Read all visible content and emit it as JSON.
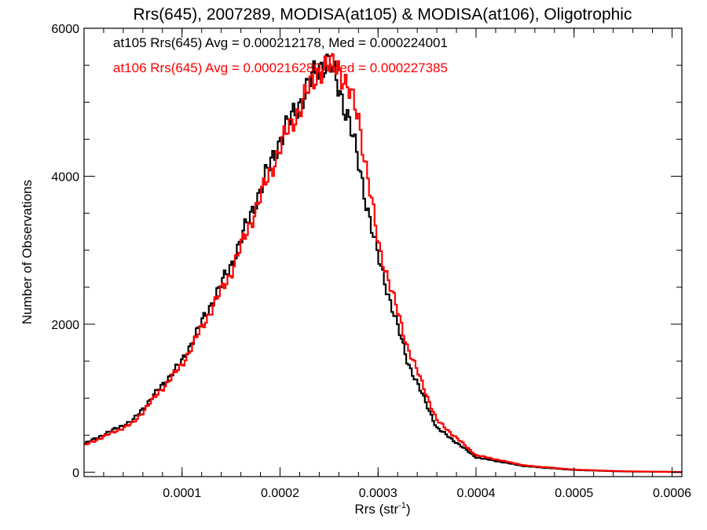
{
  "chart_data": {
    "type": "histogram-step",
    "title": "Rrs(645), 2007289, MODISA(at105) & MODISA(at106), Oligotrophic",
    "xlabel_main": "Rrs (str",
    "xlabel_sup": "-1",
    "xlabel_close": ")",
    "ylabel": "Number of Observations",
    "xlim": [
      0.0,
      0.00061
    ],
    "ylim": [
      -60,
      6000
    ],
    "x_ticks": [
      0.0001,
      0.0002,
      0.0003,
      0.0004,
      0.0005,
      0.0006
    ],
    "x_tick_labels": [
      "0.0001",
      "0.0002",
      "0.0003",
      "0.0004",
      "0.0005",
      "0.0006"
    ],
    "y_ticks": [
      0,
      2000,
      4000,
      6000
    ],
    "y_tick_labels": [
      "0",
      "2000",
      "4000",
      "6000"
    ],
    "annotations": [
      {
        "text": "at105 Rrs(645) Avg = 0.000212178, Med = 0.000224001",
        "color": "#000000"
      },
      {
        "text": "at106 Rrs(645) Avg = 0.000216280, Med = 0.000227385",
        "color": "#ff0000"
      }
    ],
    "series": [
      {
        "color": "#000000",
        "points": [
          [
            0.0,
            380
          ],
          [
            5e-05,
            700
          ],
          [
            0.0001,
            1500
          ],
          [
            0.00015,
            2800
          ],
          [
            0.0002,
            4500
          ],
          [
            0.00024,
            5500
          ],
          [
            0.00025,
            5550
          ],
          [
            0.00027,
            4800
          ],
          [
            0.0003,
            2900
          ],
          [
            0.00033,
            1500
          ],
          [
            0.00036,
            600
          ],
          [
            0.0004,
            200
          ],
          [
            0.00045,
            80
          ],
          [
            0.0005,
            30
          ],
          [
            0.00055,
            10
          ],
          [
            0.00061,
            2
          ]
        ]
      },
      {
        "color": "#ff0000",
        "points": [
          [
            0.0,
            360
          ],
          [
            5e-05,
            660
          ],
          [
            0.0001,
            1450
          ],
          [
            0.00015,
            2700
          ],
          [
            0.0002,
            4400
          ],
          [
            0.00024,
            5450
          ],
          [
            0.00026,
            5500
          ],
          [
            0.00028,
            4800
          ],
          [
            0.0003,
            3100
          ],
          [
            0.00033,
            1700
          ],
          [
            0.00036,
            700
          ],
          [
            0.0004,
            230
          ],
          [
            0.00045,
            90
          ],
          [
            0.0005,
            35
          ],
          [
            0.00055,
            12
          ],
          [
            0.00061,
            2
          ]
        ]
      }
    ]
  }
}
